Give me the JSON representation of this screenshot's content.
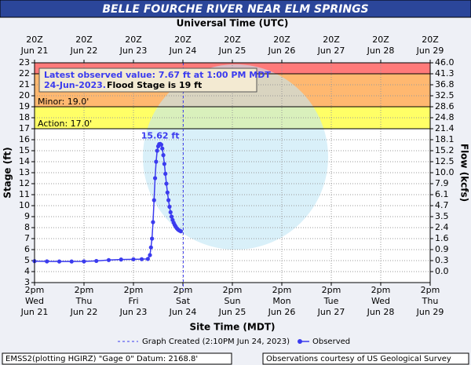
{
  "chart_data": {
    "type": "line",
    "title": "BELLE FOURCHE RIVER NEAR ELM SPRINGS",
    "x2label": "Universal Time (UTC)",
    "xlabel": "Site Time (MDT)",
    "ylabel": "Stage (ft)",
    "y2label": "Flow (kcfs)",
    "xlim": [
      "2023-06-21T14:00",
      "2023-06-29T14:00"
    ],
    "xticks": [
      {
        "value": "2023-06-21T14:00",
        "label": [
          "2pm",
          "Wed",
          "Jun 21"
        ]
      },
      {
        "value": "2023-06-22T14:00",
        "label": [
          "2pm",
          "Thu",
          "Jun 22"
        ]
      },
      {
        "value": "2023-06-23T14:00",
        "label": [
          "2pm",
          "Fri",
          "Jun 23"
        ]
      },
      {
        "value": "2023-06-24T14:00",
        "label": [
          "2pm",
          "Sat",
          "Jun 24"
        ]
      },
      {
        "value": "2023-06-25T14:00",
        "label": [
          "2pm",
          "Sun",
          "Jun 25"
        ]
      },
      {
        "value": "2023-06-26T14:00",
        "label": [
          "2pm",
          "Mon",
          "Jun 26"
        ]
      },
      {
        "value": "2023-06-27T14:00",
        "label": [
          "2pm",
          "Tue",
          "Jun 27"
        ]
      },
      {
        "value": "2023-06-28T14:00",
        "label": [
          "2pm",
          "Wed",
          "Jun 28"
        ]
      },
      {
        "value": "2023-06-29T14:00",
        "label": [
          "2pm",
          "Thu",
          "Jun 29"
        ]
      }
    ],
    "x2ticks": [
      {
        "value": "2023-06-21T14:00",
        "label": [
          "20Z",
          "Jun 21"
        ]
      },
      {
        "value": "2023-06-22T14:00",
        "label": [
          "20Z",
          "Jun 22"
        ]
      },
      {
        "value": "2023-06-23T14:00",
        "label": [
          "20Z",
          "Jun 23"
        ]
      },
      {
        "value": "2023-06-24T14:00",
        "label": [
          "20Z",
          "Jun 24"
        ]
      },
      {
        "value": "2023-06-25T14:00",
        "label": [
          "20Z",
          "Jun 25"
        ]
      },
      {
        "value": "2023-06-26T14:00",
        "label": [
          "20Z",
          "Jun 26"
        ]
      },
      {
        "value": "2023-06-27T14:00",
        "label": [
          "20Z",
          "Jun 27"
        ]
      },
      {
        "value": "2023-06-28T14:00",
        "label": [
          "20Z",
          "Jun 28"
        ]
      },
      {
        "value": "2023-06-29T14:00",
        "label": [
          "20Z",
          "Jun 29"
        ]
      }
    ],
    "ylim": [
      3,
      23
    ],
    "yticks": [
      3,
      4,
      5,
      6,
      7,
      8,
      9,
      10,
      11,
      12,
      13,
      14,
      15,
      16,
      17,
      18,
      19,
      20,
      21,
      22,
      23
    ],
    "y2tick_labels": [
      null,
      "0.0",
      "0.3",
      "0.9",
      "1.6",
      "2.4",
      "3.5",
      "4.7",
      "6.1",
      "7.9",
      "10.0",
      "12.5",
      "15.2",
      "18.1",
      "21.4",
      "24.8",
      "28.6",
      "32.5",
      "36.8",
      "41.3",
      "46.0"
    ],
    "grid": true,
    "thresholds": [
      {
        "value": 17,
        "label": "Action: 17.0'",
        "color": "#ffff66"
      },
      {
        "value": 19,
        "label": "Minor: 19.0'",
        "color": "#ffb870"
      },
      {
        "value": 22,
        "color": "#ff7a7a"
      }
    ],
    "graph_created": {
      "x": "2023-06-24T14:10",
      "label": "Graph Created (2:10PM Jun 24, 2023)"
    },
    "series": [
      {
        "name": "Observed",
        "color": "#3b3bef",
        "x": [
          "2023-06-21T14:00",
          "2023-06-21T20:00",
          "2023-06-22T02:00",
          "2023-06-22T08:00",
          "2023-06-22T14:00",
          "2023-06-22T20:00",
          "2023-06-23T02:00",
          "2023-06-23T08:00",
          "2023-06-23T14:00",
          "2023-06-23T18:00",
          "2023-06-23T21:00",
          "2023-06-23T22:00",
          "2023-06-23T22:30",
          "2023-06-23T23:00",
          "2023-06-23T23:30",
          "2023-06-24T00:00",
          "2023-06-24T00:30",
          "2023-06-24T01:00",
          "2023-06-24T01:30",
          "2023-06-24T02:00",
          "2023-06-24T02:30",
          "2023-06-24T03:00",
          "2023-06-24T03:30",
          "2023-06-24T04:00",
          "2023-06-24T04:30",
          "2023-06-24T05:00",
          "2023-06-24T05:30",
          "2023-06-24T06:00",
          "2023-06-24T06:30",
          "2023-06-24T07:00",
          "2023-06-24T07:30",
          "2023-06-24T08:00",
          "2023-06-24T08:30",
          "2023-06-24T09:00",
          "2023-06-24T09:30",
          "2023-06-24T10:00",
          "2023-06-24T10:30",
          "2023-06-24T11:00",
          "2023-06-24T11:30",
          "2023-06-24T12:00",
          "2023-06-24T12:30",
          "2023-06-24T13:00"
        ],
        "values": [
          4.95,
          4.93,
          4.92,
          4.92,
          4.93,
          4.97,
          5.05,
          5.1,
          5.12,
          5.13,
          5.15,
          5.5,
          6.2,
          7.0,
          8.5,
          10.5,
          12.5,
          14.0,
          15.0,
          15.4,
          15.6,
          15.62,
          15.55,
          15.2,
          14.6,
          13.8,
          12.9,
          12.0,
          11.2,
          10.5,
          9.9,
          9.4,
          9.0,
          8.7,
          8.45,
          8.25,
          8.1,
          7.95,
          7.85,
          7.77,
          7.72,
          7.67
        ]
      }
    ],
    "peak_annotation": {
      "x": "2023-06-24T03:00",
      "y": 15.62,
      "text": "15.62 ft"
    },
    "info_box": [
      "Latest observed value: 7.67 ft at 1:00 PM MDT",
      "24-Jun-2023.",
      "Flood Stage is 19 ft"
    ],
    "footer_left": "EMSS2(plotting HGIRZ) \"Gage 0\" Datum: 2168.8'",
    "footer_right": "Observations courtesy of US Geological Survey"
  }
}
